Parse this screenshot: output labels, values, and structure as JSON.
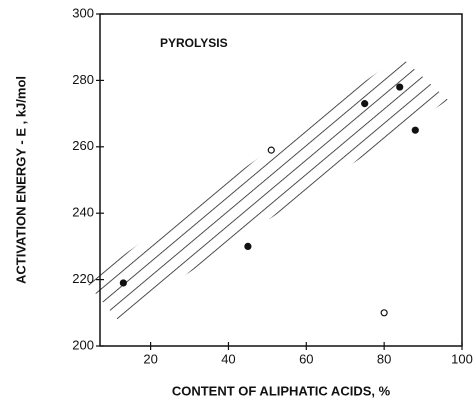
{
  "chart_data": {
    "type": "scatter",
    "annotation": "PYROLYSIS",
    "x_label": "CONTENT OF ALIPHATIC ACIDS, %",
    "y_label": "ACTIVATION ENERGY - E , kJ/mol",
    "x": [
      13,
      45,
      51,
      75,
      84,
      88,
      80
    ],
    "y": [
      219,
      230,
      259,
      273,
      278,
      265,
      210
    ],
    "markers": [
      "filled",
      "filled",
      "open",
      "filled",
      "filled",
      "filled",
      "open"
    ],
    "color": "#111111",
    "xlim": [
      7,
      100
    ],
    "ylim": [
      200,
      300
    ],
    "xticks": [
      20,
      40,
      60,
      80,
      100
    ],
    "yticks": [
      200,
      220,
      240,
      260,
      280,
      300
    ]
  }
}
